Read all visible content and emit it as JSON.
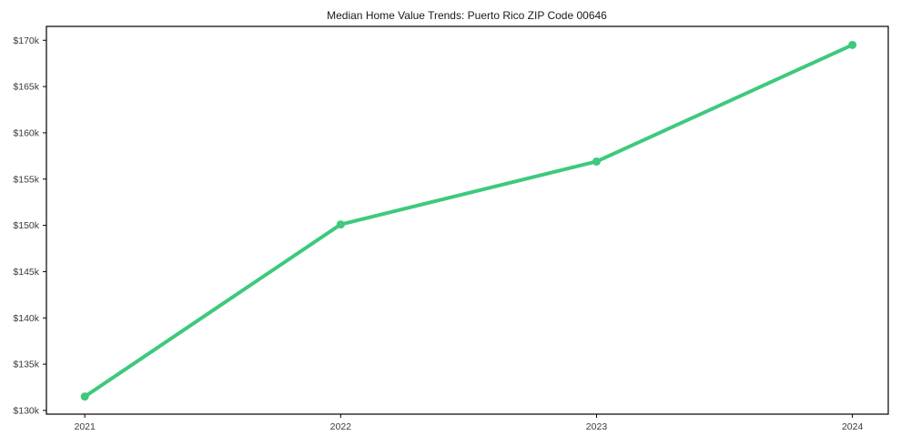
{
  "chart_data": {
    "type": "line",
    "title": "Median Home Value Trends: Puerto Rico ZIP Code 00646",
    "xlabel": "",
    "ylabel": "",
    "x": [
      2021,
      2022,
      2023,
      2024
    ],
    "x_tick_labels": [
      "2021",
      "2022",
      "2023",
      "2024"
    ],
    "series": [
      {
        "name": "median-home-value",
        "values": [
          131500,
          150100,
          156900,
          169500
        ],
        "color": "#3ec97d",
        "marker": "circle",
        "line_width": 4
      }
    ],
    "y_ticks": [
      130000,
      135000,
      140000,
      145000,
      150000,
      155000,
      160000,
      165000,
      170000
    ],
    "y_tick_labels": [
      "$130k",
      "$135k",
      "$140k",
      "$145k",
      "$150k",
      "$155k",
      "$160k",
      "$165k",
      "$170k"
    ],
    "xlim": [
      2020.85,
      2024.14
    ],
    "ylim": [
      129600,
      171500
    ],
    "grid": false,
    "legend": "none"
  },
  "colors": {
    "line": "#3ec97d",
    "axis": "#000000",
    "tick_text": "#3a3a3a",
    "background": "#ffffff"
  }
}
